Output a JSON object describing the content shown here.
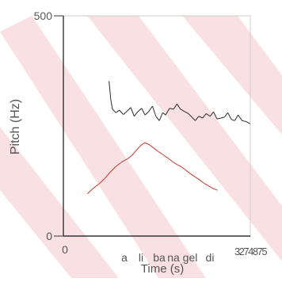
{
  "chart_data": {
    "type": "line",
    "title": "",
    "xlabel": "Time (s)",
    "ylabel": "Pitch (Hz)",
    "xlim": [
      0,
      3.274
    ],
    "ylim": [
      0,
      500
    ],
    "x_tick_labels": [
      "0",
      "3274875"
    ],
    "y_tick_labels": [
      "0",
      "500"
    ],
    "syllables": [
      "a",
      "li",
      "ba",
      "na",
      "gel",
      "di"
    ],
    "grid": false,
    "series": [
      {
        "color": "#2a2a2a",
        "points": [
          [
            0.8,
            352
          ],
          [
            0.83,
            310
          ],
          [
            0.86,
            288
          ],
          [
            0.92,
            280
          ],
          [
            0.98,
            286
          ],
          [
            1.05,
            276
          ],
          [
            1.12,
            284
          ],
          [
            1.18,
            292
          ],
          [
            1.24,
            272
          ],
          [
            1.3,
            282
          ],
          [
            1.37,
            290
          ],
          [
            1.43,
            275
          ],
          [
            1.49,
            282
          ],
          [
            1.56,
            295
          ],
          [
            1.62,
            272
          ],
          [
            1.68,
            262
          ],
          [
            1.74,
            280
          ],
          [
            1.79,
            275
          ],
          [
            1.86,
            290
          ],
          [
            1.93,
            288
          ],
          [
            1.99,
            300
          ],
          [
            2.05,
            288
          ],
          [
            2.12,
            283
          ],
          [
            2.19,
            278
          ],
          [
            2.25,
            270
          ],
          [
            2.31,
            262
          ],
          [
            2.37,
            272
          ],
          [
            2.44,
            268
          ],
          [
            2.5,
            278
          ],
          [
            2.57,
            272
          ],
          [
            2.63,
            282
          ],
          [
            2.69,
            266
          ],
          [
            2.76,
            268
          ],
          [
            2.82,
            270
          ],
          [
            2.88,
            280
          ],
          [
            2.94,
            265
          ],
          [
            3.0,
            262
          ],
          [
            3.06,
            275
          ],
          [
            3.13,
            262
          ],
          [
            3.2,
            260
          ],
          [
            3.27,
            255
          ]
        ]
      },
      {
        "color": "#c0392b",
        "points": [
          [
            0.42,
            96
          ],
          [
            0.52,
            108
          ],
          [
            0.62,
            118
          ],
          [
            0.72,
            130
          ],
          [
            0.82,
            145
          ],
          [
            0.92,
            158
          ],
          [
            1.02,
            168
          ],
          [
            1.12,
            175
          ],
          [
            1.2,
            183
          ],
          [
            1.28,
            195
          ],
          [
            1.35,
            205
          ],
          [
            1.42,
            212
          ],
          [
            1.5,
            208
          ],
          [
            1.58,
            200
          ],
          [
            1.66,
            192
          ],
          [
            1.74,
            185
          ],
          [
            1.82,
            178
          ],
          [
            1.9,
            170
          ],
          [
            1.98,
            163
          ],
          [
            2.06,
            158
          ],
          [
            2.14,
            150
          ],
          [
            2.22,
            142
          ],
          [
            2.3,
            135
          ],
          [
            2.38,
            128
          ],
          [
            2.46,
            120
          ],
          [
            2.54,
            114
          ],
          [
            2.62,
            108
          ],
          [
            2.7,
            104
          ]
        ]
      }
    ]
  }
}
